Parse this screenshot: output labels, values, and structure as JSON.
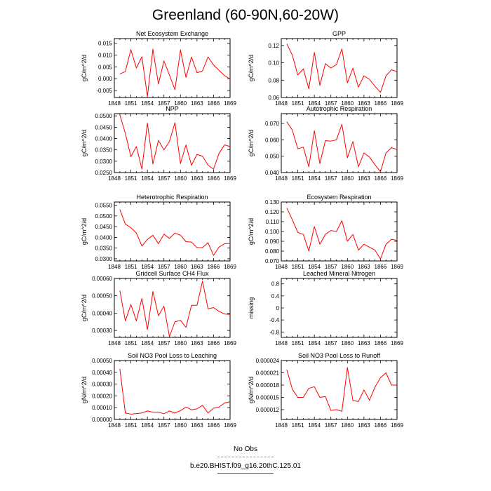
{
  "title": "Greenland (60-90N,60-20W)",
  "legend": {
    "items": [
      {
        "label": "No Obs",
        "color": "#8080ff",
        "style": "dashed"
      },
      {
        "label": "b.e20.BHIST.f09_g16.20thC.125.01",
        "color": "#ff0000",
        "style": "solid"
      }
    ]
  },
  "chart_data": [
    {
      "type": "line",
      "title": "Net Ecosystem Exchange",
      "ylabel": "gC/m^2/d",
      "xlim": [
        1848,
        1869
      ],
      "xticks": [
        "1848",
        "1851",
        "1854",
        "1857",
        "1860",
        "1863",
        "1866",
        "1869"
      ],
      "ylim": [
        -0.008,
        0.017
      ],
      "yticks": [
        "-0.005",
        "0.000",
        "0.005",
        "0.010",
        "0.015"
      ],
      "series": [
        {
          "color": "#ff0000",
          "x": [
            1849,
            1850,
            1851,
            1852,
            1853,
            1854,
            1855,
            1856,
            1857,
            1858,
            1859,
            1860,
            1861,
            1862,
            1863,
            1864,
            1865,
            1866,
            1867,
            1868,
            1869
          ],
          "y": [
            0.002,
            0.003,
            0.0123,
            0.0045,
            0.0093,
            -0.0075,
            0.0125,
            -0.0023,
            0.0075,
            0.0015,
            -0.0047,
            0.0122,
            0.0005,
            0.0092,
            0.0025,
            0.0033,
            0.0092,
            0.0058,
            0.0035,
            0.0013,
            -0.0002
          ]
        }
      ]
    },
    {
      "type": "line",
      "title": "GPP",
      "ylabel": "gC/m^2/d",
      "xlim": [
        1848,
        1869
      ],
      "xticks": [
        "1848",
        "1851",
        "1854",
        "1857",
        "1860",
        "1863",
        "1866",
        "1869"
      ],
      "ylim": [
        0.06,
        0.128
      ],
      "yticks": [
        "0.06",
        "0.08",
        "0.10",
        "0.12"
      ],
      "series": [
        {
          "color": "#ff0000",
          "x": [
            1849,
            1850,
            1851,
            1852,
            1853,
            1854,
            1855,
            1856,
            1857,
            1858,
            1859,
            1860,
            1861,
            1862,
            1863,
            1864,
            1865,
            1866,
            1867,
            1868,
            1869
          ],
          "y": [
            0.122,
            0.109,
            0.086,
            0.093,
            0.07,
            0.112,
            0.074,
            0.099,
            0.094,
            0.098,
            0.116,
            0.077,
            0.094,
            0.072,
            0.085,
            0.081,
            0.073,
            0.066,
            0.085,
            0.092,
            0.09
          ]
        }
      ]
    },
    {
      "type": "line",
      "title": "NPP",
      "ylabel": "gC/m^2/d",
      "xlim": [
        1848,
        1869
      ],
      "xticks": [
        "1848",
        "1851",
        "1854",
        "1857",
        "1860",
        "1863",
        "1866",
        "1869"
      ],
      "ylim": [
        0.025,
        0.051
      ],
      "yticks": [
        "0.0250",
        "0.0300",
        "0.0350",
        "0.0400",
        "0.0450",
        "0.0500"
      ],
      "series": [
        {
          "color": "#ff0000",
          "x": [
            1849,
            1850,
            1851,
            1852,
            1853,
            1854,
            1855,
            1856,
            1857,
            1858,
            1859,
            1860,
            1861,
            1862,
            1863,
            1864,
            1865,
            1866,
            1867,
            1868,
            1869
          ],
          "y": [
            0.0505,
            0.0423,
            0.032,
            0.0365,
            0.0265,
            0.0468,
            0.0288,
            0.0392,
            0.035,
            0.0387,
            0.047,
            0.029,
            0.0372,
            0.0282,
            0.033,
            0.0322,
            0.0283,
            0.0265,
            0.0335,
            0.0372,
            0.0365
          ]
        }
      ]
    },
    {
      "type": "line",
      "title": "Autotrophic Respiration",
      "ylabel": "gC/m^2/d",
      "xlim": [
        1848,
        1869
      ],
      "xticks": [
        "1848",
        "1851",
        "1854",
        "1857",
        "1860",
        "1863",
        "1866",
        "1869"
      ],
      "ylim": [
        0.04,
        0.076
      ],
      "yticks": [
        "0.040",
        "0.050",
        "0.060",
        "0.070"
      ],
      "series": [
        {
          "color": "#ff0000",
          "x": [
            1849,
            1850,
            1851,
            1852,
            1853,
            1854,
            1855,
            1856,
            1857,
            1858,
            1859,
            1860,
            1861,
            1862,
            1863,
            1864,
            1865,
            1866,
            1867,
            1868,
            1869
          ],
          "y": [
            0.071,
            0.066,
            0.0545,
            0.0555,
            0.0435,
            0.0655,
            0.0455,
            0.0595,
            0.0592,
            0.06,
            0.0695,
            0.049,
            0.059,
            0.0435,
            0.052,
            0.0495,
            0.0448,
            0.0405,
            0.052,
            0.0552,
            0.054
          ]
        }
      ]
    },
    {
      "type": "line",
      "title": "Heterotrophic Respiration",
      "ylabel": "gC/m^2/d",
      "xlim": [
        1848,
        1869
      ],
      "xticks": [
        "1848",
        "1851",
        "1854",
        "1857",
        "1860",
        "1863",
        "1866",
        "1869"
      ],
      "ylim": [
        0.029,
        0.0565
      ],
      "yticks": [
        "0.0300",
        "0.0350",
        "0.0400",
        "0.0450",
        "0.0500",
        "0.0550"
      ],
      "series": [
        {
          "color": "#ff0000",
          "x": [
            1849,
            1850,
            1851,
            1852,
            1853,
            1854,
            1855,
            1856,
            1857,
            1858,
            1859,
            1860,
            1861,
            1862,
            1863,
            1864,
            1865,
            1866,
            1867,
            1868,
            1869
          ],
          "y": [
            0.053,
            0.0462,
            0.0445,
            0.042,
            0.036,
            0.039,
            0.041,
            0.037,
            0.0415,
            0.0395,
            0.042,
            0.041,
            0.038,
            0.0378,
            0.0352,
            0.0352,
            0.0375,
            0.0316,
            0.0355,
            0.037,
            0.0372
          ]
        }
      ]
    },
    {
      "type": "line",
      "title": "Ecosystem Respiration",
      "ylabel": "gC/m^2/d",
      "xlim": [
        1848,
        1869
      ],
      "xticks": [
        "1848",
        "1851",
        "1854",
        "1857",
        "1860",
        "1863",
        "1866",
        "1869"
      ],
      "ylim": [
        0.07,
        0.13
      ],
      "yticks": [
        "0.070",
        "0.080",
        "0.090",
        "0.100",
        "0.110",
        "0.120",
        "0.130"
      ],
      "series": [
        {
          "color": "#ff0000",
          "x": [
            1849,
            1850,
            1851,
            1852,
            1853,
            1854,
            1855,
            1856,
            1857,
            1858,
            1859,
            1860,
            1861,
            1862,
            1863,
            1864,
            1865,
            1866,
            1867,
            1868,
            1869
          ],
          "y": [
            0.124,
            0.112,
            0.099,
            0.097,
            0.08,
            0.105,
            0.087,
            0.097,
            0.101,
            0.1,
            0.111,
            0.09,
            0.097,
            0.081,
            0.087,
            0.084,
            0.081,
            0.072,
            0.087,
            0.092,
            0.091
          ]
        }
      ]
    },
    {
      "type": "line",
      "title": "Gridcell Surface CH4 Flux",
      "ylabel": "gC/m^2/d",
      "xlim": [
        1848,
        1869
      ],
      "xticks": [
        "1848",
        "1851",
        "1854",
        "1857",
        "1860",
        "1863",
        "1866",
        "1869"
      ],
      "ylim": [
        0.00026,
        0.0006
      ],
      "yticks": [
        "0.00030",
        "0.00040",
        "0.00050",
        "0.00060"
      ],
      "series": [
        {
          "color": "#ff0000",
          "x": [
            1849,
            1850,
            1851,
            1852,
            1853,
            1854,
            1855,
            1856,
            1857,
            1858,
            1859,
            1860,
            1861,
            1862,
            1863,
            1864,
            1865,
            1866,
            1867,
            1868,
            1869
          ],
          "y": [
            0.00053,
            0.000355,
            0.00045,
            0.000355,
            0.000485,
            0.000305,
            0.000525,
            0.000385,
            0.00044,
            0.000265,
            0.00035,
            0.000358,
            0.000318,
            0.000445,
            0.000445,
            0.000585,
            0.000425,
            0.000432,
            0.00041,
            0.000395,
            0.000392
          ]
        }
      ]
    },
    {
      "type": "line",
      "title": "Leached Mineral Nitrogen",
      "ylabel": "missing",
      "xlim": [
        1848,
        1869
      ],
      "xticks": [
        "1848",
        "1851",
        "1854",
        "1857",
        "1860",
        "1863",
        "1866",
        "1869"
      ],
      "ylim": [
        -0.98,
        0.98
      ],
      "yticks": [
        "-0.8",
        "-0.4",
        "0",
        "0.4",
        "0.8"
      ],
      "series": []
    },
    {
      "type": "line",
      "title": "Soil NO3 Pool Loss to Leaching",
      "ylabel": "gN/m^2/d",
      "xlim": [
        1848,
        1869
      ],
      "xticks": [
        "1848",
        "1851",
        "1854",
        "1857",
        "1860",
        "1863",
        "1866",
        "1869"
      ],
      "ylim": [
        0.0,
        0.0005
      ],
      "yticks": [
        "0.00000",
        "0.00010",
        "0.00020",
        "0.00030",
        "0.00040",
        "0.00050"
      ],
      "series": [
        {
          "color": "#ff0000",
          "x": [
            1849,
            1850,
            1851,
            1852,
            1853,
            1854,
            1855,
            1856,
            1857,
            1858,
            1859,
            1860,
            1861,
            1862,
            1863,
            1864,
            1865,
            1866,
            1867,
            1868,
            1869
          ],
          "y": [
            0.00043,
            5.5e-05,
            4.5e-05,
            5e-05,
            5.5e-05,
            7.2e-05,
            6.2e-05,
            6.2e-05,
            4.8e-05,
            7.2e-05,
            5.5e-05,
            7.5e-05,
            0.000105,
            8.2e-05,
            9e-05,
            0.00012,
            5.5e-05,
            9.5e-05,
            0.000105,
            0.00014,
            0.00015
          ]
        }
      ]
    },
    {
      "type": "line",
      "title": "Soil NO3 Pool Loss to Runoff",
      "ylabel": "gN/m^2/d",
      "xlim": [
        1848,
        1869
      ],
      "xticks": [
        "1848",
        "1851",
        "1854",
        "1857",
        "1860",
        "1863",
        "1866",
        "1869"
      ],
      "ylim": [
        9.6e-06,
        2.4e-05
      ],
      "yticks": [
        "0.000012",
        "0.000015",
        "0.000018",
        "0.000021",
        "0.000024"
      ],
      "series": [
        {
          "color": "#ff0000",
          "x": [
            1849,
            1850,
            1851,
            1852,
            1853,
            1854,
            1855,
            1856,
            1857,
            1858,
            1859,
            1860,
            1861,
            1862,
            1863,
            1864,
            1865,
            1866,
            1867,
            1868,
            1869
          ],
          "y": [
            2.18e-05,
            1.7e-05,
            1.5e-05,
            1.5e-05,
            1.72e-05,
            1.76e-05,
            1.5e-05,
            1.52e-05,
            1.18e-05,
            1.2e-05,
            1.16e-05,
            2.23e-05,
            1.42e-05,
            1.4e-05,
            1.68e-05,
            1.43e-05,
            1.75e-05,
            1.98e-05,
            2.1e-05,
            1.8e-05,
            1.8e-05
          ]
        }
      ]
    }
  ]
}
